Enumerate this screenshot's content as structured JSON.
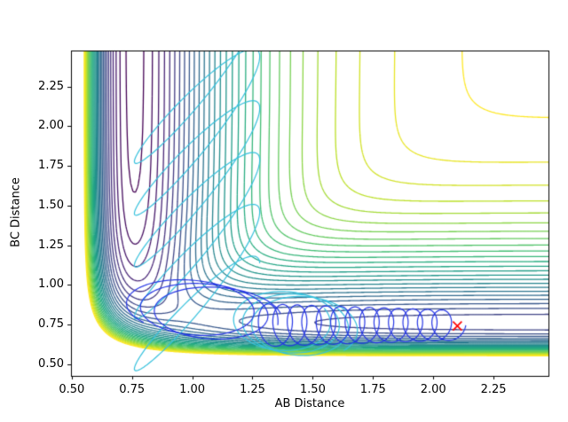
{
  "chart_data": {
    "type": "contour",
    "title": "",
    "xlabel": "AB Distance",
    "ylabel": "BC Distance",
    "xlim": [
      0.497,
      2.478
    ],
    "ylim": [
      0.425,
      2.478
    ],
    "x_ticks": [
      "0.50",
      "0.75",
      "1.00",
      "1.25",
      "1.50",
      "1.75",
      "2.00",
      "2.25"
    ],
    "x_tick_values": [
      0.5,
      0.75,
      1.0,
      1.25,
      1.5,
      1.75,
      2.0,
      2.25
    ],
    "y_ticks": [
      "0.50",
      "0.75",
      "1.00",
      "1.25",
      "1.50",
      "1.75",
      "2.00",
      "2.25"
    ],
    "y_tick_values": [
      0.5,
      0.75,
      1.0,
      1.25,
      1.5,
      1.75,
      2.0,
      2.25
    ],
    "grid": false,
    "legend": "none",
    "potential": {
      "model": "LEPS-collinear-ABC",
      "D": 4.746,
      "alpha": 3.3,
      "r0": 0.76,
      "sato_ab": 0.05,
      "sato_bc": 0.3,
      "sato_ac": 0.05
    },
    "levels": {
      "min": -4.45,
      "step": 0.15,
      "count": 30
    },
    "colormap": {
      "name": "viridis",
      "anchors": [
        "#440154",
        "#482475",
        "#414487",
        "#355f8d",
        "#2a788e",
        "#21918c",
        "#22a884",
        "#44bf70",
        "#7ad151",
        "#bddf26",
        "#fde725"
      ]
    },
    "contour_linewidth": 1.3,
    "trajectories": [
      {
        "name": "incoming-AB-vibration",
        "color": "#35c0dc",
        "linewidth": 1.2,
        "segments": [
          {
            "points": 700,
            "cycles": 5.2,
            "x_center": 1.02,
            "x_drift": 0,
            "x_amp": 0.26,
            "x_phase": 0.3,
            "y_center": 2.42,
            "y_drift": -1.7,
            "y_amp": 0.44,
            "y_phase": 0.65
          },
          {
            "points": 500,
            "cycles": 3.2,
            "x_center": 1.36,
            "x_drift": 0.12,
            "x_amp": 0.21,
            "x_phase": 1.1,
            "y_center": 0.78,
            "y_drift": -0.05,
            "y_amp": 0.19,
            "y_phase": 2.75
          }
        ]
      },
      {
        "name": "product-BC-vibration",
        "color": "#2434e4",
        "linewidth": 1.2,
        "segments": [
          {
            "points": 500,
            "cycles": 2.6,
            "x_center": 0.97,
            "x_drift": 0.15,
            "x_amp": 0.25,
            "x_phase": 3.9,
            "y_center": 0.87,
            "y_drift": -0.06,
            "y_amp": 0.17,
            "y_phase": 5.6
          },
          {
            "points": 900,
            "cycles": 13,
            "x_center": 1.3,
            "x_drift": 0.78,
            "x_amp": 0.055,
            "x_phase": 1.57,
            "y_center": 0.745,
            "y_drift": 0,
            "y_amp": 0.135,
            "y_amp_decay": 0.3,
            "y_phase": 0
          }
        ]
      }
    ],
    "marker": {
      "x": 2.1,
      "y": 0.74,
      "symbol": "x",
      "color": "#ff0000",
      "size": 5
    }
  }
}
